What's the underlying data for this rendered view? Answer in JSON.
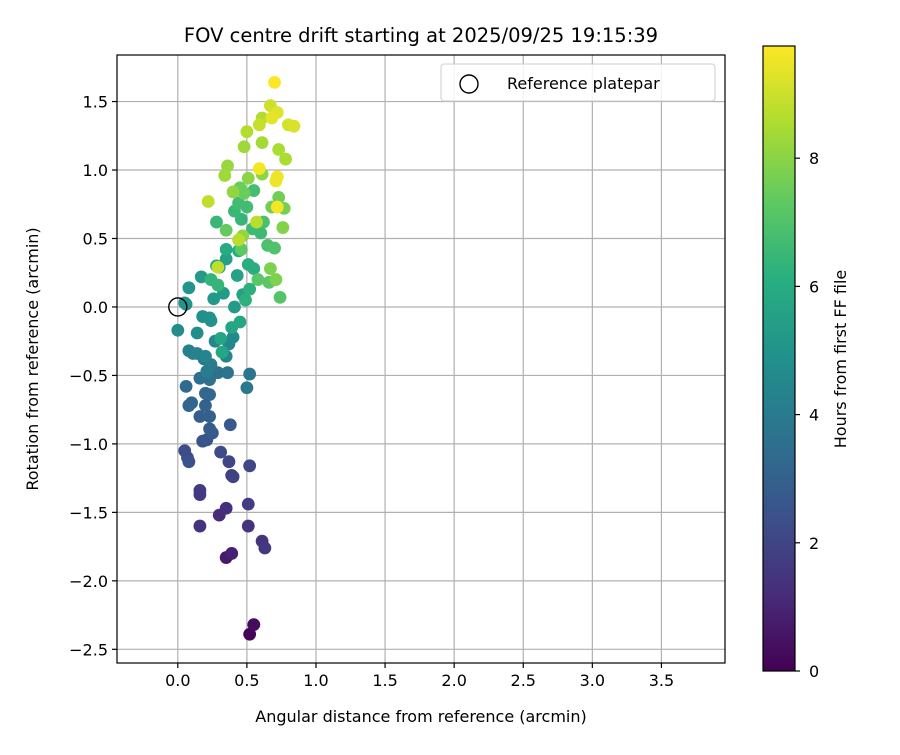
{
  "chart_data": {
    "type": "scatter",
    "title": "FOV centre drift starting at 2025/09/25 19:15:39",
    "xlabel": "Angular distance from reference (arcmin)",
    "ylabel": "Rotation from reference (arcmin)",
    "xlim": [
      -0.44,
      3.96
    ],
    "ylim": [
      -2.6,
      1.84
    ],
    "xticks": [
      0.0,
      0.5,
      1.0,
      1.5,
      2.0,
      2.5,
      3.0,
      3.5
    ],
    "xtick_labels": [
      "0.0",
      "0.5",
      "1.0",
      "1.5",
      "2.0",
      "2.5",
      "3.0",
      "3.5"
    ],
    "yticks": [
      -2.5,
      -2.0,
      -1.5,
      -1.0,
      -0.5,
      0.0,
      0.5,
      1.0,
      1.5
    ],
    "ytick_labels": [
      "−2.5",
      "−2.0",
      "−1.5",
      "−1.0",
      "−0.5",
      "0.0",
      "0.5",
      "1.0",
      "1.5"
    ],
    "grid": true,
    "legend": {
      "placement": "upper right",
      "entries": [
        {
          "label": "Reference platepar",
          "marker": "open-circle"
        }
      ]
    },
    "reference_point": {
      "x": 0.0,
      "y": 0.0,
      "label": "Reference platepar"
    },
    "colorbar": {
      "label": "Hours from first FF file",
      "colormap": "viridis",
      "range": [
        0,
        9.75
      ],
      "ticks": [
        0,
        2,
        4,
        6,
        8
      ],
      "tick_labels": [
        "0",
        "2",
        "4",
        "6",
        "8"
      ]
    },
    "series": [
      {
        "points": [
          [
            0.52,
            -2.39,
            0.1
          ],
          [
            0.55,
            -2.32,
            0.3
          ],
          [
            0.35,
            -1.83,
            0.7
          ],
          [
            0.39,
            -1.8,
            0.9
          ],
          [
            0.3,
            -1.52,
            1.2
          ],
          [
            0.35,
            -1.47,
            1.3
          ],
          [
            0.16,
            -1.6,
            1.4
          ],
          [
            0.51,
            -1.6,
            1.4
          ],
          [
            0.61,
            -1.71,
            1.4
          ],
          [
            0.63,
            -1.76,
            1.5
          ],
          [
            0.16,
            -1.34,
            1.6
          ],
          [
            0.16,
            -1.37,
            1.6
          ],
          [
            0.51,
            -1.44,
            1.7
          ],
          [
            0.39,
            -1.23,
            1.8
          ],
          [
            0.4,
            -1.24,
            1.9
          ],
          [
            0.37,
            -1.13,
            2.0
          ],
          [
            0.52,
            -1.16,
            2.1
          ],
          [
            0.31,
            -1.06,
            2.2
          ],
          [
            0.05,
            -1.05,
            2.3
          ],
          [
            0.07,
            -1.1,
            2.3
          ],
          [
            0.08,
            -1.13,
            2.4
          ],
          [
            0.18,
            -0.98,
            2.5
          ],
          [
            0.21,
            -0.97,
            2.6
          ],
          [
            0.38,
            -0.86,
            2.7
          ],
          [
            0.25,
            -0.92,
            2.7
          ],
          [
            0.23,
            -0.89,
            2.8
          ],
          [
            0.16,
            -0.8,
            2.9
          ],
          [
            0.23,
            -0.8,
            3.0
          ],
          [
            0.2,
            -0.72,
            3.1
          ],
          [
            0.08,
            -0.72,
            3.2
          ],
          [
            0.1,
            -0.7,
            3.2
          ],
          [
            0.2,
            -0.63,
            3.3
          ],
          [
            0.23,
            -0.64,
            3.3
          ],
          [
            0.06,
            -0.58,
            3.4
          ],
          [
            0.16,
            -0.52,
            3.5
          ],
          [
            0.23,
            -0.53,
            3.6
          ],
          [
            0.29,
            -0.48,
            3.6
          ],
          [
            0.36,
            -0.48,
            3.7
          ],
          [
            0.52,
            -0.49,
            3.8
          ],
          [
            0.5,
            -0.59,
            3.9
          ],
          [
            0.19,
            -0.38,
            3.9
          ],
          [
            0.24,
            -0.42,
            4.0
          ],
          [
            0.21,
            -0.47,
            4.1
          ],
          [
            0.08,
            -0.32,
            4.2
          ],
          [
            0.11,
            -0.34,
            4.2
          ],
          [
            0.14,
            -0.34,
            4.3
          ],
          [
            0.2,
            -0.36,
            4.4
          ],
          [
            0.35,
            -0.36,
            4.4
          ],
          [
            0.37,
            -0.27,
            4.5
          ],
          [
            0.27,
            -0.25,
            4.5
          ],
          [
            0.4,
            -0.22,
            4.6
          ],
          [
            0.0,
            -0.17,
            4.7
          ],
          [
            0.14,
            -0.19,
            4.7
          ],
          [
            0.18,
            -0.07,
            4.8
          ],
          [
            0.23,
            -0.08,
            4.9
          ],
          [
            0.24,
            -0.1,
            4.9
          ],
          [
            0.06,
            0.02,
            5.0
          ],
          [
            0.05,
            0.03,
            5.0
          ],
          [
            0.08,
            0.14,
            5.1
          ],
          [
            0.17,
            0.22,
            5.2
          ],
          [
            0.26,
            0.06,
            5.2
          ],
          [
            0.33,
            0.1,
            5.3
          ],
          [
            0.41,
            0.0,
            5.3
          ],
          [
            0.3,
            0.29,
            5.4
          ],
          [
            0.35,
            0.35,
            5.5
          ],
          [
            0.28,
            0.3,
            5.5
          ],
          [
            0.43,
            0.23,
            5.6
          ],
          [
            0.47,
            0.09,
            5.6
          ],
          [
            0.31,
            -0.23,
            5.7
          ],
          [
            0.39,
            -0.15,
            5.7
          ],
          [
            0.45,
            -0.11,
            5.8
          ],
          [
            0.32,
            -0.33,
            5.8
          ],
          [
            0.35,
            0.42,
            5.9
          ],
          [
            0.44,
            0.41,
            6.0
          ],
          [
            0.51,
            0.31,
            6.1
          ],
          [
            0.55,
            0.28,
            6.1
          ],
          [
            0.49,
            0.05,
            6.2
          ],
          [
            0.52,
            0.13,
            6.2
          ],
          [
            0.24,
            0.2,
            6.3
          ],
          [
            0.29,
            0.16,
            6.4
          ],
          [
            0.46,
            0.64,
            6.4
          ],
          [
            0.41,
            0.7,
            6.5
          ],
          [
            0.28,
            0.62,
            6.5
          ],
          [
            0.54,
            0.57,
            6.6
          ],
          [
            0.6,
            0.54,
            6.6
          ],
          [
            0.5,
            0.73,
            6.7
          ],
          [
            0.44,
            0.76,
            6.7
          ],
          [
            0.55,
            0.85,
            6.8
          ],
          [
            0.62,
            0.62,
            6.9
          ],
          [
            0.65,
            0.45,
            6.9
          ],
          [
            0.7,
            0.43,
            7.0
          ],
          [
            0.74,
            0.07,
            7.1
          ],
          [
            0.66,
            0.18,
            7.2
          ],
          [
            0.58,
            0.2,
            7.2
          ],
          [
            0.46,
            0.42,
            7.3
          ],
          [
            0.35,
            0.56,
            7.4
          ],
          [
            0.45,
            0.87,
            7.5
          ],
          [
            0.48,
            0.83,
            7.5
          ],
          [
            0.68,
            0.73,
            7.6
          ],
          [
            0.73,
            0.8,
            7.6
          ],
          [
            0.77,
            0.72,
            7.7
          ],
          [
            0.67,
            0.28,
            7.8
          ],
          [
            0.71,
            0.2,
            7.8
          ],
          [
            0.76,
            0.58,
            7.9
          ],
          [
            0.61,
            0.97,
            8.0
          ],
          [
            0.51,
            0.94,
            8.0
          ],
          [
            0.47,
            0.52,
            8.1
          ],
          [
            0.4,
            0.84,
            8.1
          ],
          [
            0.36,
            1.03,
            8.2
          ],
          [
            0.34,
            0.96,
            8.3
          ],
          [
            0.48,
            1.17,
            8.3
          ],
          [
            0.61,
            1.2,
            8.4
          ],
          [
            0.73,
            1.15,
            8.5
          ],
          [
            0.78,
            1.08,
            8.5
          ],
          [
            0.61,
            1.38,
            8.6
          ],
          [
            0.5,
            1.28,
            8.6
          ],
          [
            0.57,
            0.62,
            8.7
          ],
          [
            0.44,
            0.49,
            8.7
          ],
          [
            0.29,
            0.29,
            8.8
          ],
          [
            0.22,
            0.77,
            8.8
          ],
          [
            0.59,
            1.33,
            8.9
          ],
          [
            0.67,
            1.47,
            9.0
          ],
          [
            0.8,
            1.33,
            9.1
          ],
          [
            0.84,
            1.32,
            9.2
          ],
          [
            0.72,
            1.42,
            9.3
          ],
          [
            0.68,
            1.38,
            9.4
          ],
          [
            0.72,
            0.95,
            9.5
          ],
          [
            0.71,
            0.92,
            9.5
          ],
          [
            0.59,
            1.01,
            9.6
          ],
          [
            0.72,
            0.73,
            9.6
          ],
          [
            0.7,
            1.64,
            9.7
          ]
        ]
      }
    ]
  }
}
